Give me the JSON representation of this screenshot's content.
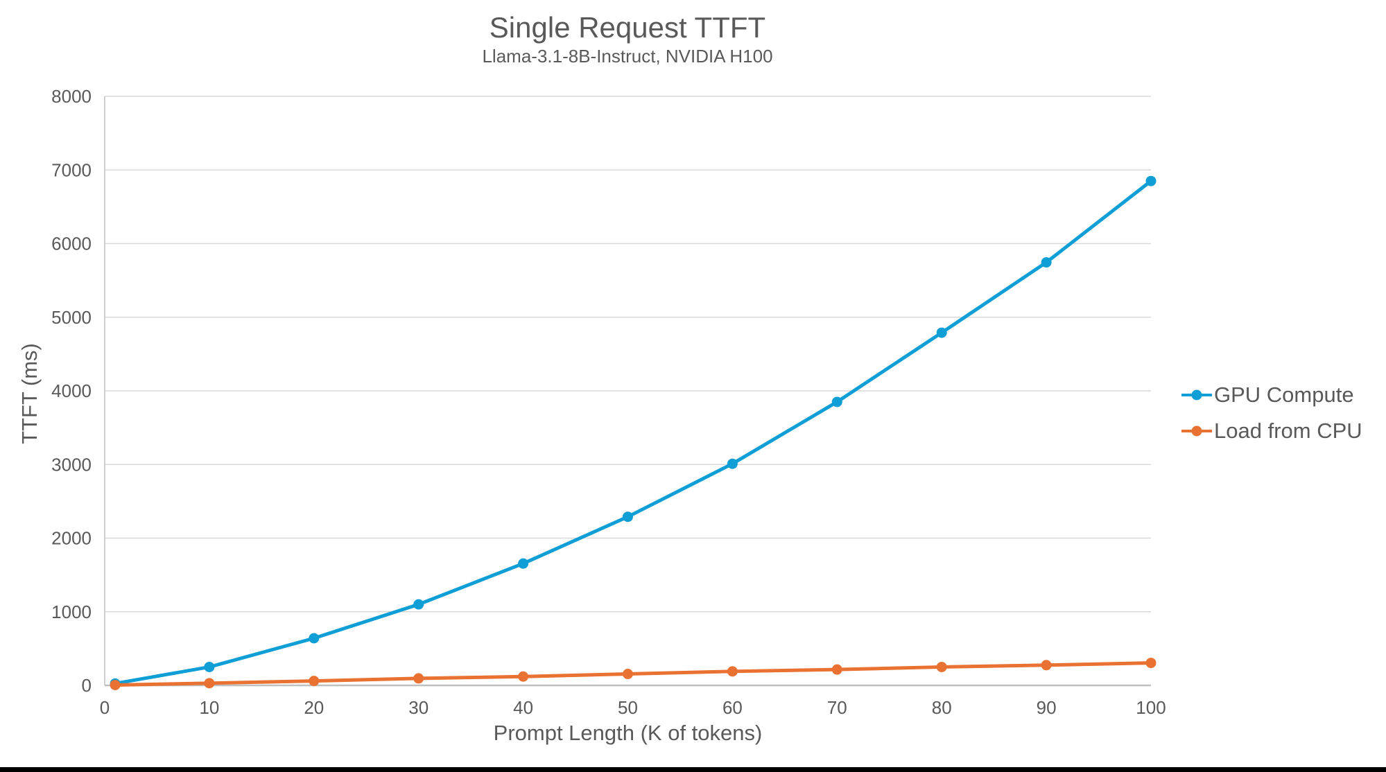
{
  "chart_data": {
    "type": "line",
    "title": "Single Request TTFT",
    "subtitle": "Llama-3.1-8B-Instruct, NVIDIA H100",
    "xlabel": "Prompt Length (K of tokens)",
    "ylabel": "TTFT (ms)",
    "x": [
      1,
      10,
      20,
      30,
      40,
      50,
      60,
      70,
      80,
      90,
      100
    ],
    "series": [
      {
        "name": "GPU Compute",
        "color": "#0F9ED5",
        "values": [
          25,
          250,
          640,
          1100,
          1655,
          2290,
          3010,
          3850,
          4790,
          5745,
          6850
        ]
      },
      {
        "name": "Load from CPU",
        "color": "#E97132",
        "values": [
          5,
          30,
          60,
          95,
          120,
          155,
          190,
          215,
          250,
          275,
          305
        ]
      }
    ],
    "xlim": [
      0,
      100
    ],
    "ylim": [
      0,
      8000
    ],
    "xticks": [
      0,
      10,
      20,
      30,
      40,
      50,
      60,
      70,
      80,
      90,
      100
    ],
    "yticks": [
      0,
      1000,
      2000,
      3000,
      4000,
      5000,
      6000,
      7000,
      8000
    ],
    "grid": "horizontal",
    "legend_position": "right",
    "colors": {
      "grid": "#D9D9D9",
      "axis": "#BFBFBF",
      "text": "#595959",
      "bottom_bar": "#000000"
    }
  }
}
